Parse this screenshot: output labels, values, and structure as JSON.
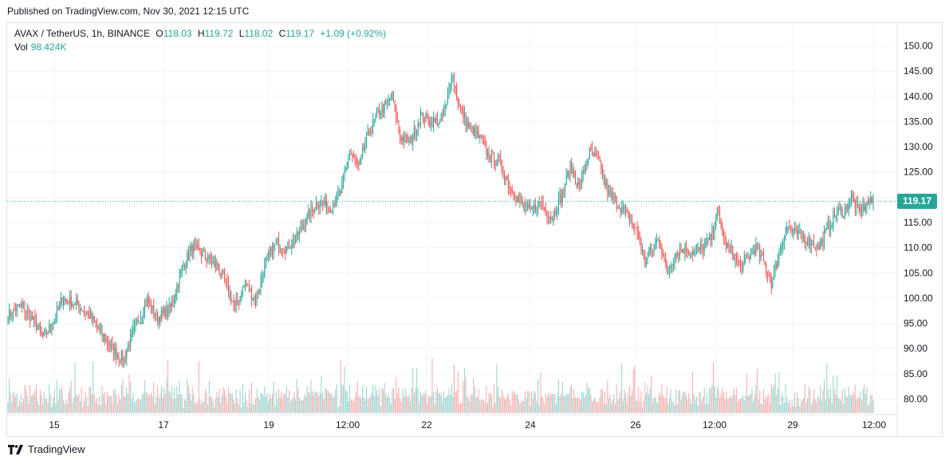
{
  "header": {
    "published": "Published on TradingView.com, Nov 30, 2021 12:15 UTC"
  },
  "legend": {
    "symbol": "AVAX / TetherUS, 1h, BINANCE",
    "o_label": "O",
    "o_value": "118.03",
    "h_label": "H",
    "h_value": "119.72",
    "l_label": "L",
    "l_value": "118.02",
    "c_label": "C",
    "c_value": "119.17",
    "change": "+1.09 (+0.92%)",
    "vol_label": "Vol",
    "vol_value": "98.424K"
  },
  "price_badge": "119.17",
  "footer": {
    "brand": "TradingView"
  },
  "colors": {
    "up": "#26a69a",
    "down": "#ef5350",
    "grid": "#f0f3fa",
    "axis_text": "#131722"
  },
  "chart_data": {
    "type": "candlestick",
    "symbol": "AVAX / TetherUS",
    "interval": "1h",
    "exchange": "BINANCE",
    "y_ticks": [
      "80.00",
      "85.00",
      "90.00",
      "95.00",
      "100.00",
      "105.00",
      "110.00",
      "115.00",
      "120.00",
      "125.00",
      "130.00",
      "135.00",
      "140.00",
      "145.00",
      "150.00"
    ],
    "ylim": [
      77.5,
      152.5
    ],
    "x_ticks": [
      "15",
      "17",
      "19",
      "12:00",
      "22",
      "24",
      "26",
      "12:00",
      "29",
      "12:00"
    ],
    "last_price": 119.17,
    "close_path": [
      [
        0,
        96.5
      ],
      [
        10,
        98.5
      ],
      [
        20,
        95.5
      ],
      [
        28,
        92.0
      ],
      [
        36,
        96.0
      ],
      [
        42,
        100.0
      ],
      [
        55,
        98.5
      ],
      [
        65,
        96.0
      ],
      [
        75,
        92.0
      ],
      [
        84,
        89.0
      ],
      [
        90,
        88.0
      ],
      [
        98,
        94.0
      ],
      [
        108,
        99.5
      ],
      [
        116,
        96.0
      ],
      [
        126,
        98.0
      ],
      [
        135,
        106.0
      ],
      [
        143,
        110.0
      ],
      [
        152,
        108.5
      ],
      [
        160,
        107.0
      ],
      [
        168,
        103.5
      ],
      [
        176,
        98.0
      ],
      [
        184,
        103.0
      ],
      [
        192,
        99.5
      ],
      [
        200,
        107.0
      ],
      [
        208,
        111.0
      ],
      [
        216,
        110.0
      ],
      [
        224,
        112.0
      ],
      [
        232,
        116.0
      ],
      [
        240,
        119.0
      ],
      [
        250,
        118.0
      ],
      [
        258,
        121.0
      ],
      [
        265,
        129.0
      ],
      [
        272,
        126.0
      ],
      [
        280,
        133.0
      ],
      [
        288,
        137.0
      ],
      [
        293,
        138.0
      ],
      [
        298,
        140.0
      ],
      [
        304,
        132.0
      ],
      [
        312,
        131.0
      ],
      [
        320,
        136.0
      ],
      [
        328,
        135.0
      ],
      [
        335,
        135.0
      ],
      [
        340,
        138.0
      ],
      [
        344,
        145.0
      ],
      [
        350,
        138.0
      ],
      [
        357,
        134.0
      ],
      [
        365,
        132.0
      ],
      [
        373,
        128.0
      ],
      [
        381,
        127.0
      ],
      [
        389,
        122.0
      ],
      [
        397,
        119.0
      ],
      [
        405,
        117.0
      ],
      [
        413,
        119.0
      ],
      [
        421,
        116.0
      ],
      [
        429,
        120.0
      ],
      [
        436,
        126.0
      ],
      [
        443,
        122.0
      ],
      [
        451,
        129.0
      ],
      [
        458,
        127.0
      ],
      [
        465,
        121.0
      ],
      [
        472,
        119.0
      ],
      [
        481,
        116.0
      ],
      [
        488,
        113.0
      ],
      [
        494,
        107.0
      ],
      [
        500,
        110.0
      ],
      [
        505,
        112.0
      ],
      [
        511,
        105.0
      ],
      [
        518,
        109.0
      ],
      [
        525,
        110.0
      ],
      [
        532,
        109.0
      ],
      [
        539,
        110.0
      ],
      [
        545,
        112.0
      ],
      [
        550,
        117.0
      ],
      [
        556,
        111.0
      ],
      [
        562,
        109.0
      ],
      [
        568,
        106.0
      ],
      [
        574,
        108.0
      ],
      [
        580,
        110.0
      ],
      [
        586,
        107.0
      ],
      [
        592,
        103.0
      ],
      [
        598,
        109.0
      ],
      [
        604,
        114.0
      ],
      [
        610,
        113.0
      ],
      [
        617,
        112.0
      ],
      [
        623,
        111.0
      ],
      [
        629,
        110.0
      ],
      [
        636,
        114.0
      ],
      [
        642,
        117.0
      ],
      [
        648,
        117.0
      ],
      [
        654,
        120.0
      ],
      [
        660,
        117.0
      ],
      [
        667,
        119.0
      ],
      [
        671,
        119.17
      ]
    ],
    "volume_axis": "unlabeled"
  }
}
